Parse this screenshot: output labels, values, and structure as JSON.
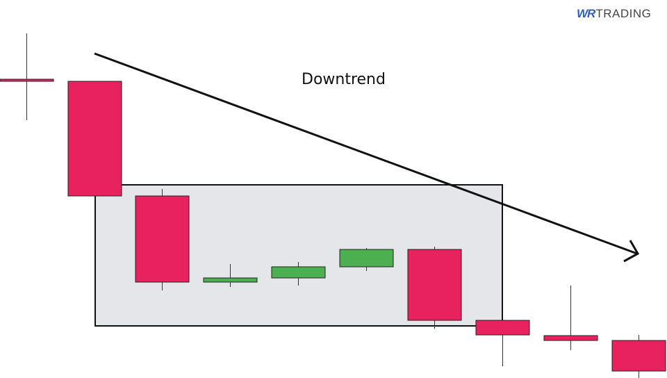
{
  "logo": {
    "accent": "WR",
    "text": "TRADING"
  },
  "annotation": "Downtrend",
  "colors": {
    "bearish": "#e8215f",
    "bullish": "#4caf50",
    "range_box": "#e5e6ea",
    "outline": "#111111"
  },
  "candles": [
    {
      "direction": "bearish"
    },
    {
      "direction": "bearish"
    },
    {
      "direction": "bearish"
    },
    {
      "direction": "bullish"
    },
    {
      "direction": "bullish"
    },
    {
      "direction": "bullish"
    },
    {
      "direction": "bearish"
    },
    {
      "direction": "bearish"
    },
    {
      "direction": "bearish"
    },
    {
      "direction": "bearish"
    }
  ]
}
